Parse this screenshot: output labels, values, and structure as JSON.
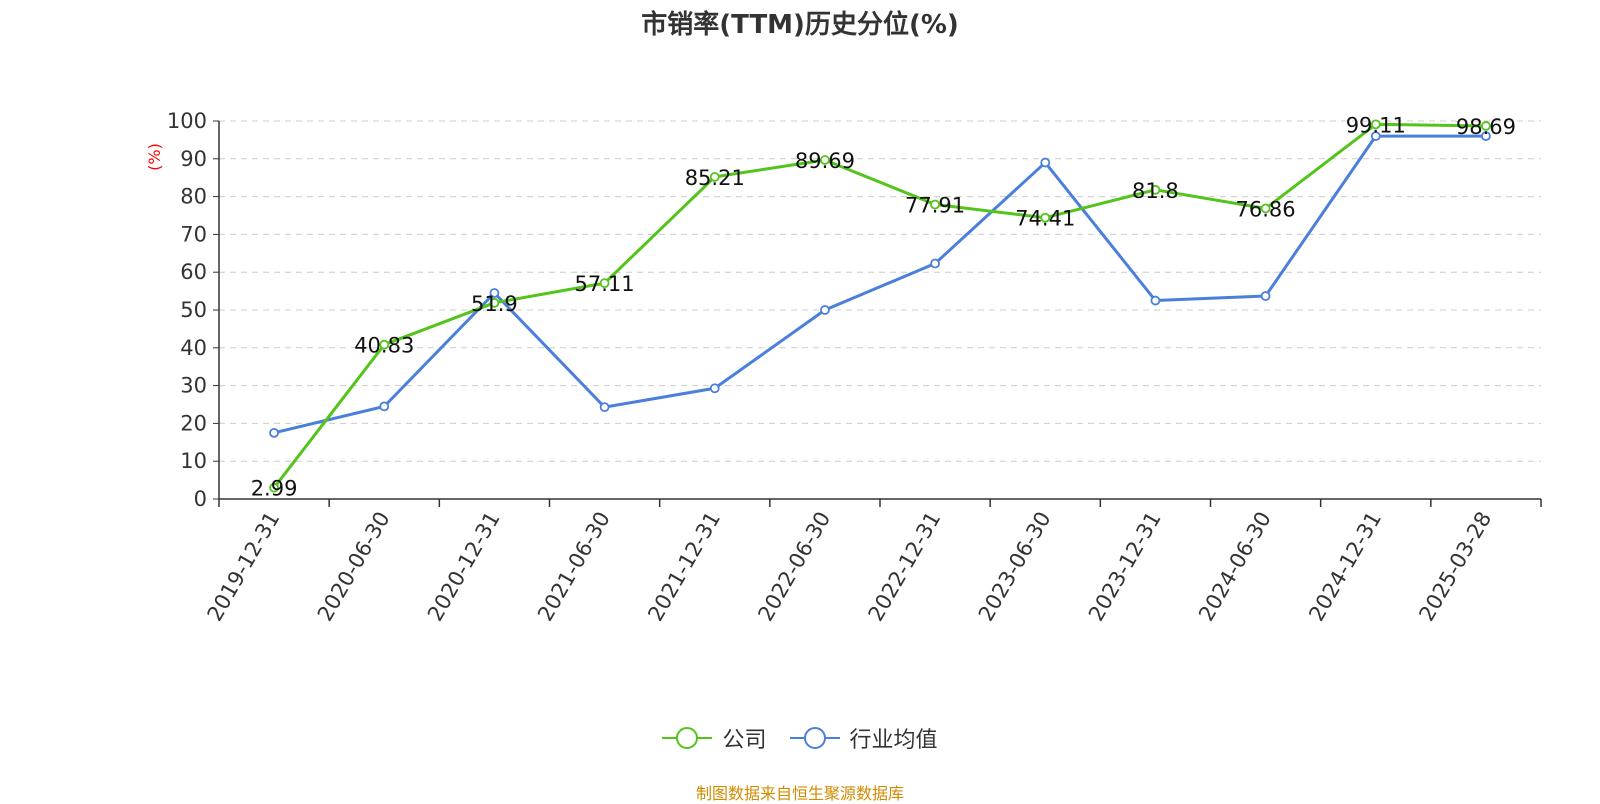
{
  "chart_data": {
    "type": "line",
    "title": "市销率(TTM)历史分位(%)",
    "ylabel": "(%)",
    "ylim": [
      0,
      100
    ],
    "yticks": [
      "0",
      "10",
      "20",
      "30",
      "40",
      "50",
      "60",
      "70",
      "80",
      "90",
      "100"
    ],
    "categories": [
      "2019-12-31",
      "2020-06-30",
      "2020-12-31",
      "2021-06-30",
      "2021-12-31",
      "2022-06-30",
      "2022-12-31",
      "2023-06-30",
      "2023-12-31",
      "2024-06-30",
      "2024-12-31",
      "2025-03-28"
    ],
    "series": [
      {
        "name": "公司",
        "color": "#52c41a",
        "values": [
          2.99,
          40.83,
          51.9,
          57.11,
          85.21,
          89.69,
          77.91,
          74.41,
          81.8,
          76.86,
          99.11,
          98.69
        ],
        "labels": [
          "2.99",
          "40.83",
          "51.9",
          "57.11",
          "85.21",
          "89.69",
          "77.91",
          "74.41",
          "81.8",
          "76.86",
          "99.11",
          "98.69"
        ]
      },
      {
        "name": "行业均值",
        "color": "#4a7fdc",
        "values": [
          17.5,
          24.5,
          54.5,
          24.3,
          29.3,
          50.0,
          62.3,
          89.0,
          52.5,
          53.7,
          96.0,
          96.0
        ]
      }
    ],
    "grid": true,
    "legend_position": "bottom"
  },
  "source": "制图数据来自恒生聚源数据库"
}
